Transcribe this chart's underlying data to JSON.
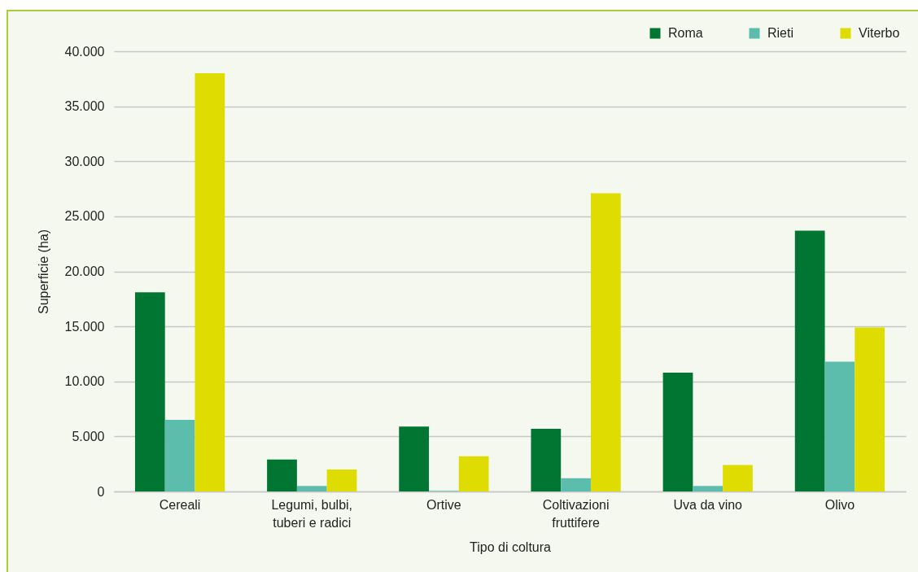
{
  "chart_data": {
    "type": "bar",
    "xlabel": "Tipo di coltura",
    "ylabel": "Superficie (ha)",
    "categories": [
      "Cereali",
      "Legumi, bulbi, tuberi e radici",
      "Ortive",
      "Coltivazioni fruttifere",
      "Uva da vino",
      "Olivo"
    ],
    "series": [
      {
        "name": "Roma",
        "color": "#007632",
        "values": [
          18100,
          2900,
          5900,
          5700,
          10800,
          23700
        ]
      },
      {
        "name": "Rieti",
        "color": "#5dbdad",
        "values": [
          6500,
          500,
          50,
          1200,
          500,
          11800
        ]
      },
      {
        "name": "Viterbo",
        "color": "#dedc00",
        "values": [
          38000,
          2000,
          3200,
          27100,
          2400,
          14900
        ]
      }
    ],
    "ylim": [
      0,
      40000
    ],
    "yticks": [
      0,
      {
        "value": 5000,
        "label": "5.000"
      },
      {
        "value": 10000,
        "label": "10.000"
      },
      {
        "value": 15000,
        "label": "15.000"
      },
      {
        "value": 20000,
        "label": "20.000"
      },
      {
        "value": 25000,
        "label": "25.000"
      },
      {
        "value": 30000,
        "label": "30.000"
      },
      {
        "value": 35000,
        "label": "35.000"
      },
      {
        "value": 40000,
        "label": "40.000"
      }
    ],
    "grid": true,
    "legend": "top right"
  }
}
